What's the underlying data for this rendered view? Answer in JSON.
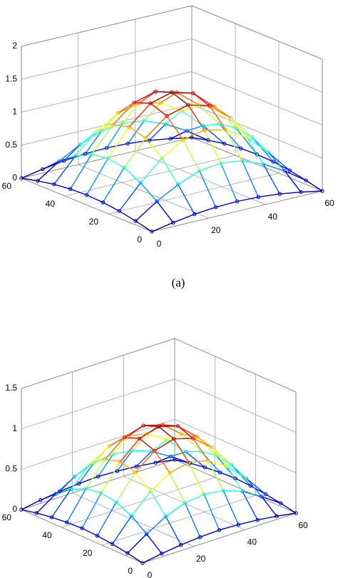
{
  "chart_data": [
    {
      "type": "surface",
      "colormap": "jet",
      "caption": "(a)",
      "x": [
        0,
        7.5,
        15,
        22.5,
        30,
        37.5,
        45,
        52.5,
        60
      ],
      "y": [
        0,
        7.5,
        15,
        22.5,
        30,
        37.5,
        45,
        52.5,
        60
      ],
      "z": [
        [
          0,
          0.06,
          0.11,
          0.14,
          0.15,
          0.14,
          0.11,
          0.06,
          0
        ],
        [
          0.06,
          0.28,
          0.46,
          0.59,
          0.63,
          0.59,
          0.46,
          0.28,
          0.06
        ],
        [
          0.11,
          0.46,
          0.76,
          0.96,
          1.03,
          0.96,
          0.76,
          0.46,
          0.11
        ],
        [
          0.14,
          0.59,
          0.96,
          1.22,
          1.31,
          1.22,
          0.96,
          0.59,
          0.14
        ],
        [
          0.15,
          0.63,
          1.03,
          1.31,
          1.4,
          1.31,
          1.03,
          0.63,
          0.15
        ],
        [
          0.14,
          0.59,
          0.96,
          1.22,
          1.31,
          1.22,
          0.96,
          0.59,
          0.14
        ],
        [
          0.11,
          0.46,
          0.76,
          0.96,
          1.03,
          0.96,
          0.76,
          0.46,
          0.11
        ],
        [
          0.06,
          0.28,
          0.46,
          0.59,
          0.63,
          0.59,
          0.46,
          0.28,
          0.06
        ],
        [
          0,
          0.06,
          0.11,
          0.14,
          0.15,
          0.14,
          0.11,
          0.06,
          0
        ]
      ],
      "xlim": [
        0,
        60
      ],
      "ylim": [
        0,
        60
      ],
      "zlim": [
        0,
        2
      ],
      "xticks": [
        0,
        20,
        40,
        60
      ],
      "yticks": [
        0,
        20,
        40,
        60
      ],
      "zticks": [
        0,
        0.5,
        1,
        1.5,
        2
      ],
      "grid": true
    },
    {
      "type": "surface",
      "colormap": "jet",
      "x": [
        0,
        7.5,
        15,
        22.5,
        30,
        37.5,
        45,
        52.5,
        60
      ],
      "y": [
        0,
        7.5,
        15,
        22.5,
        30,
        37.5,
        45,
        52.5,
        60
      ],
      "z": [
        [
          0,
          0.04,
          0.07,
          0.09,
          0.1,
          0.09,
          0.07,
          0.04,
          0
        ],
        [
          0.04,
          0.2,
          0.34,
          0.43,
          0.46,
          0.43,
          0.34,
          0.2,
          0.04
        ],
        [
          0.07,
          0.34,
          0.57,
          0.72,
          0.77,
          0.72,
          0.57,
          0.34,
          0.07
        ],
        [
          0.09,
          0.43,
          0.72,
          0.91,
          0.98,
          0.91,
          0.72,
          0.43,
          0.09
        ],
        [
          0.1,
          0.46,
          0.77,
          0.98,
          1.05,
          0.98,
          0.77,
          0.46,
          0.1
        ],
        [
          0.09,
          0.43,
          0.72,
          0.91,
          0.98,
          0.91,
          0.72,
          0.43,
          0.09
        ],
        [
          0.07,
          0.34,
          0.57,
          0.72,
          0.77,
          0.72,
          0.57,
          0.34,
          0.07
        ],
        [
          0.04,
          0.2,
          0.34,
          0.43,
          0.46,
          0.43,
          0.34,
          0.2,
          0.04
        ],
        [
          0,
          0.04,
          0.07,
          0.09,
          0.1,
          0.09,
          0.07,
          0.04,
          0
        ]
      ],
      "xlim": [
        0,
        60
      ],
      "ylim": [
        0,
        60
      ],
      "zlim": [
        0,
        1.5
      ],
      "xticks": [
        0,
        20,
        40,
        60
      ],
      "yticks": [
        0,
        20,
        40,
        60
      ],
      "zticks": [
        0,
        0.5,
        1,
        1.5
      ],
      "grid": true
    }
  ]
}
